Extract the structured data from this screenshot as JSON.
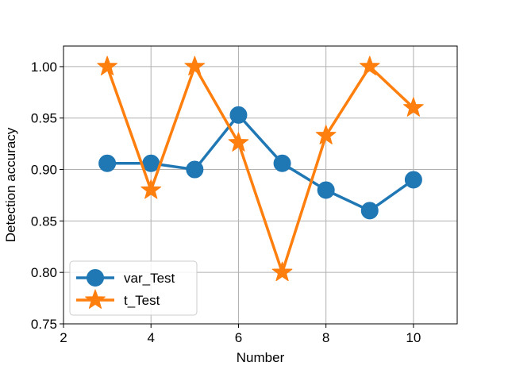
{
  "chart_data": {
    "type": "line",
    "title": "",
    "xlabel": "Number",
    "ylabel": "Detection accuracy",
    "xlim": [
      2,
      11
    ],
    "ylim": [
      0.75,
      1.02
    ],
    "xticks": [
      2,
      4,
      6,
      8,
      10
    ],
    "xtick_labels": [
      "2",
      "4",
      "6",
      "8",
      "10"
    ],
    "yticks": [
      0.75,
      0.8,
      0.85,
      0.9,
      0.95,
      1.0
    ],
    "ytick_labels": [
      "0.75",
      "0.80",
      "0.85",
      "0.90",
      "0.95",
      "1.00"
    ],
    "grid": true,
    "legend_position": "lower-left",
    "x": [
      3,
      4,
      5,
      6,
      7,
      8,
      9,
      10
    ],
    "series": [
      {
        "name": "var_Test",
        "marker": "circle",
        "color": "#1f77b4",
        "values": [
          0.906,
          0.906,
          0.9,
          0.953,
          0.906,
          0.88,
          0.86,
          0.89
        ]
      },
      {
        "name": "t_Test",
        "marker": "star",
        "color": "#ff7f0e",
        "values": [
          1.0,
          0.88,
          1.0,
          0.926,
          0.8,
          0.933,
          1.0,
          0.96
        ]
      }
    ]
  }
}
